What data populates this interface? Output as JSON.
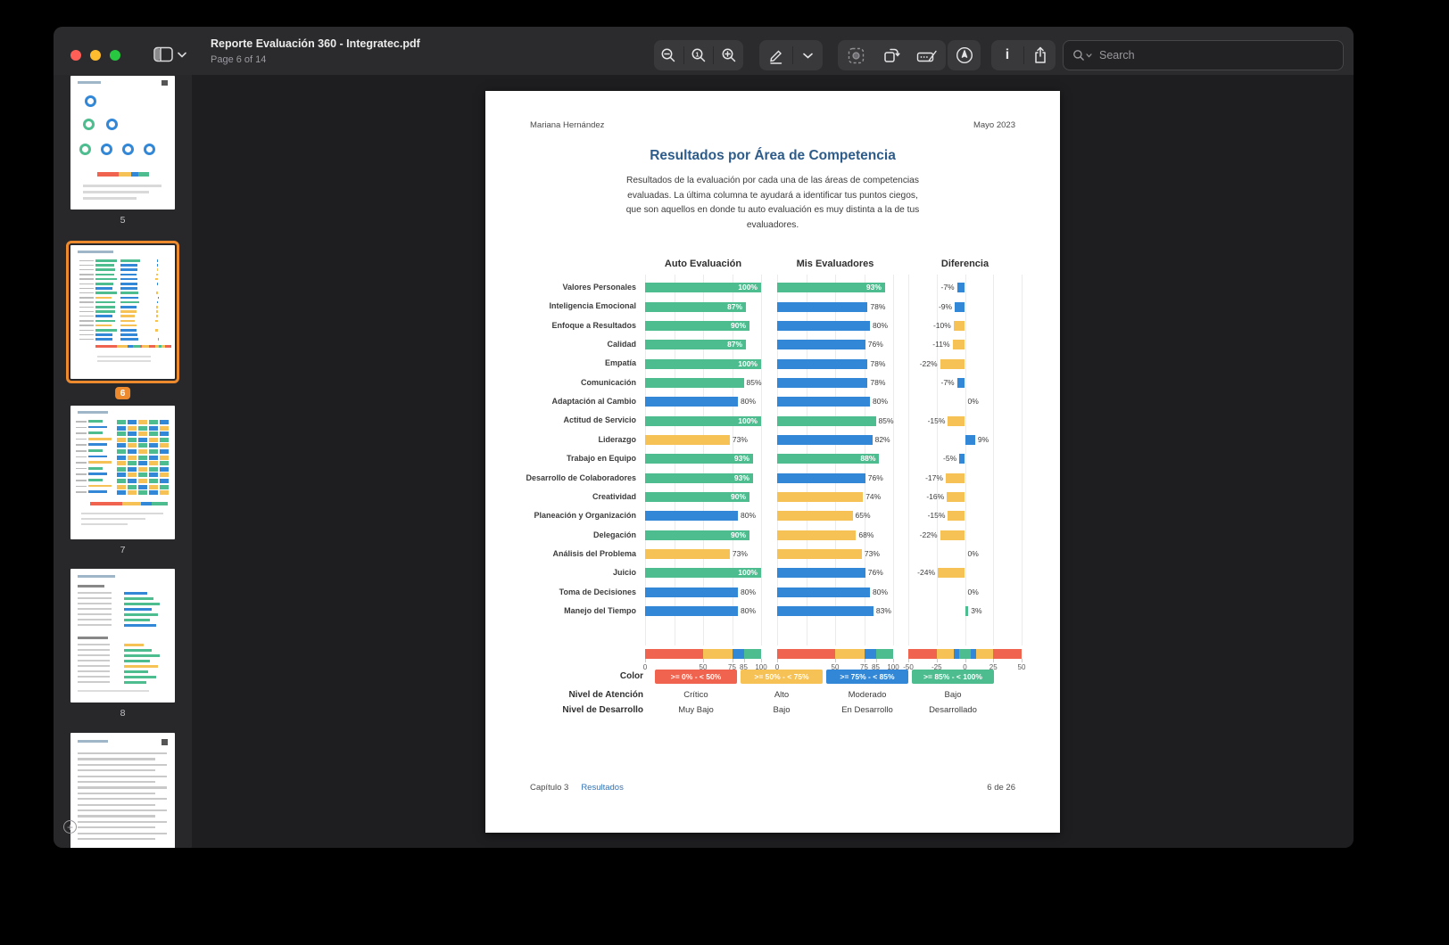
{
  "chrome": {
    "title": "Reporte Evaluación 360 - Integratec.pdf",
    "page_status": "Page 6 of 14",
    "search_placeholder": "Search"
  },
  "colors": {
    "accent_orange": "#ee8a2e",
    "bar_green": "#4dbc8e",
    "bar_blue": "#3287d6",
    "bar_yellow": "#f6c155",
    "bar_red": "#f0634e",
    "title_blue": "#2d5c8a",
    "link_blue": "#3372b5"
  },
  "sidebar": {
    "pages": [
      {
        "number": "5",
        "type": "donuts",
        "selected": false
      },
      {
        "number": "6",
        "type": "bars",
        "selected": true
      },
      {
        "number": "7",
        "type": "heatmap",
        "selected": false
      },
      {
        "number": "8",
        "type": "textbars",
        "selected": false
      },
      {
        "number": "",
        "type": "text",
        "selected": false
      }
    ]
  },
  "document": {
    "author": "Mariana Hernández",
    "date": "Mayo 2023",
    "title": "Resultados por Área de Competencia",
    "subtitle": "Resultados de la evaluación por cada una de las áreas de competencias evaluadas. La última columna te ayudará a identificar tus puntos ciegos, que son aquellos en donde tu auto evaluación es muy distinta a la de tus evaluadores.",
    "footer": {
      "chapter": "Capítulo 3",
      "section": "Resultados",
      "page": "6 de 26"
    }
  },
  "chart_data": {
    "type": "bar",
    "columns": [
      "Auto Evaluación",
      "Mis Evaluadores",
      "Diferencia"
    ],
    "categories": [
      "Valores Personales",
      "Inteligencia Emocional",
      "Enfoque a Resultados",
      "Calidad",
      "Empatía",
      "Comunicación",
      "Adaptación al Cambio",
      "Actitud de Servicio",
      "Liderazgo",
      "Trabajo en Equipo",
      "Desarrollo de Colaboradores",
      "Creatividad",
      "Planeación y Organización",
      "Delegación",
      "Análisis del Problema",
      "Juicio",
      "Toma de Decisiones",
      "Manejo del Tiempo"
    ],
    "series": [
      {
        "name": "Auto Evaluación",
        "values": [
          100,
          87,
          90,
          87,
          100,
          85,
          80,
          100,
          73,
          93,
          93,
          90,
          80,
          90,
          73,
          100,
          80,
          80
        ]
      },
      {
        "name": "Mis Evaluadores",
        "values": [
          93,
          78,
          80,
          76,
          78,
          78,
          80,
          85,
          82,
          88,
          76,
          74,
          65,
          68,
          73,
          76,
          80,
          83
        ]
      },
      {
        "name": "Diferencia",
        "values": [
          -7,
          -9,
          -10,
          -11,
          -22,
          -7,
          0,
          -15,
          9,
          -5,
          -17,
          -16,
          -15,
          -22,
          0,
          -24,
          0,
          3
        ]
      }
    ],
    "value_axis": {
      "range": [
        0,
        100
      ],
      "ticks": [
        0,
        50,
        75,
        85,
        100
      ],
      "grid": [
        0,
        25,
        50,
        75,
        100
      ]
    },
    "diff_axis": {
      "range": [
        -50,
        50
      ],
      "ticks": [
        -50,
        -25,
        0,
        25,
        50
      ],
      "grid": [
        -50,
        -25,
        0,
        25,
        50
      ]
    },
    "color_rules": {
      "value_bars": "red <50, yellow 50-74, blue 75-84, green >=85",
      "diff_bars": "green |d|<5, blue 5<=|d|<10, yellow 10<=|d|<25, red >=25"
    },
    "value_scale_segments": [
      {
        "from": 0,
        "to": 50,
        "color": "bar_red"
      },
      {
        "from": 50,
        "to": 75,
        "color": "bar_yellow"
      },
      {
        "from": 75,
        "to": 85,
        "color": "bar_blue"
      },
      {
        "from": 85,
        "to": 100,
        "color": "bar_green"
      }
    ],
    "diff_scale_segments": [
      {
        "from": -50,
        "to": -25,
        "color": "bar_red"
      },
      {
        "from": -25,
        "to": -10,
        "color": "bar_yellow"
      },
      {
        "from": -10,
        "to": -5,
        "color": "bar_blue"
      },
      {
        "from": -5,
        "to": 5,
        "color": "bar_green"
      },
      {
        "from": 5,
        "to": 10,
        "color": "bar_blue"
      },
      {
        "from": 10,
        "to": 25,
        "color": "bar_yellow"
      },
      {
        "from": 25,
        "to": 50,
        "color": "bar_red"
      }
    ]
  },
  "legend": {
    "color_label": "Color",
    "chips": [
      {
        "text": ">= 0% - < 50%",
        "color": "bar_red"
      },
      {
        "text": ">= 50% - < 75%",
        "color": "bar_yellow"
      },
      {
        "text": ">= 75% - < 85%",
        "color": "bar_blue"
      },
      {
        "text": ">= 85% - < 100%",
        "color": "bar_green"
      }
    ],
    "rows": [
      {
        "label": "Nivel de Atención",
        "values": [
          "Crítico",
          "Alto",
          "Moderado",
          "Bajo"
        ]
      },
      {
        "label": "Nivel de Desarrollo",
        "values": [
          "Muy Bajo",
          "Bajo",
          "En Desarrollo",
          "Desarrollado"
        ]
      }
    ]
  }
}
